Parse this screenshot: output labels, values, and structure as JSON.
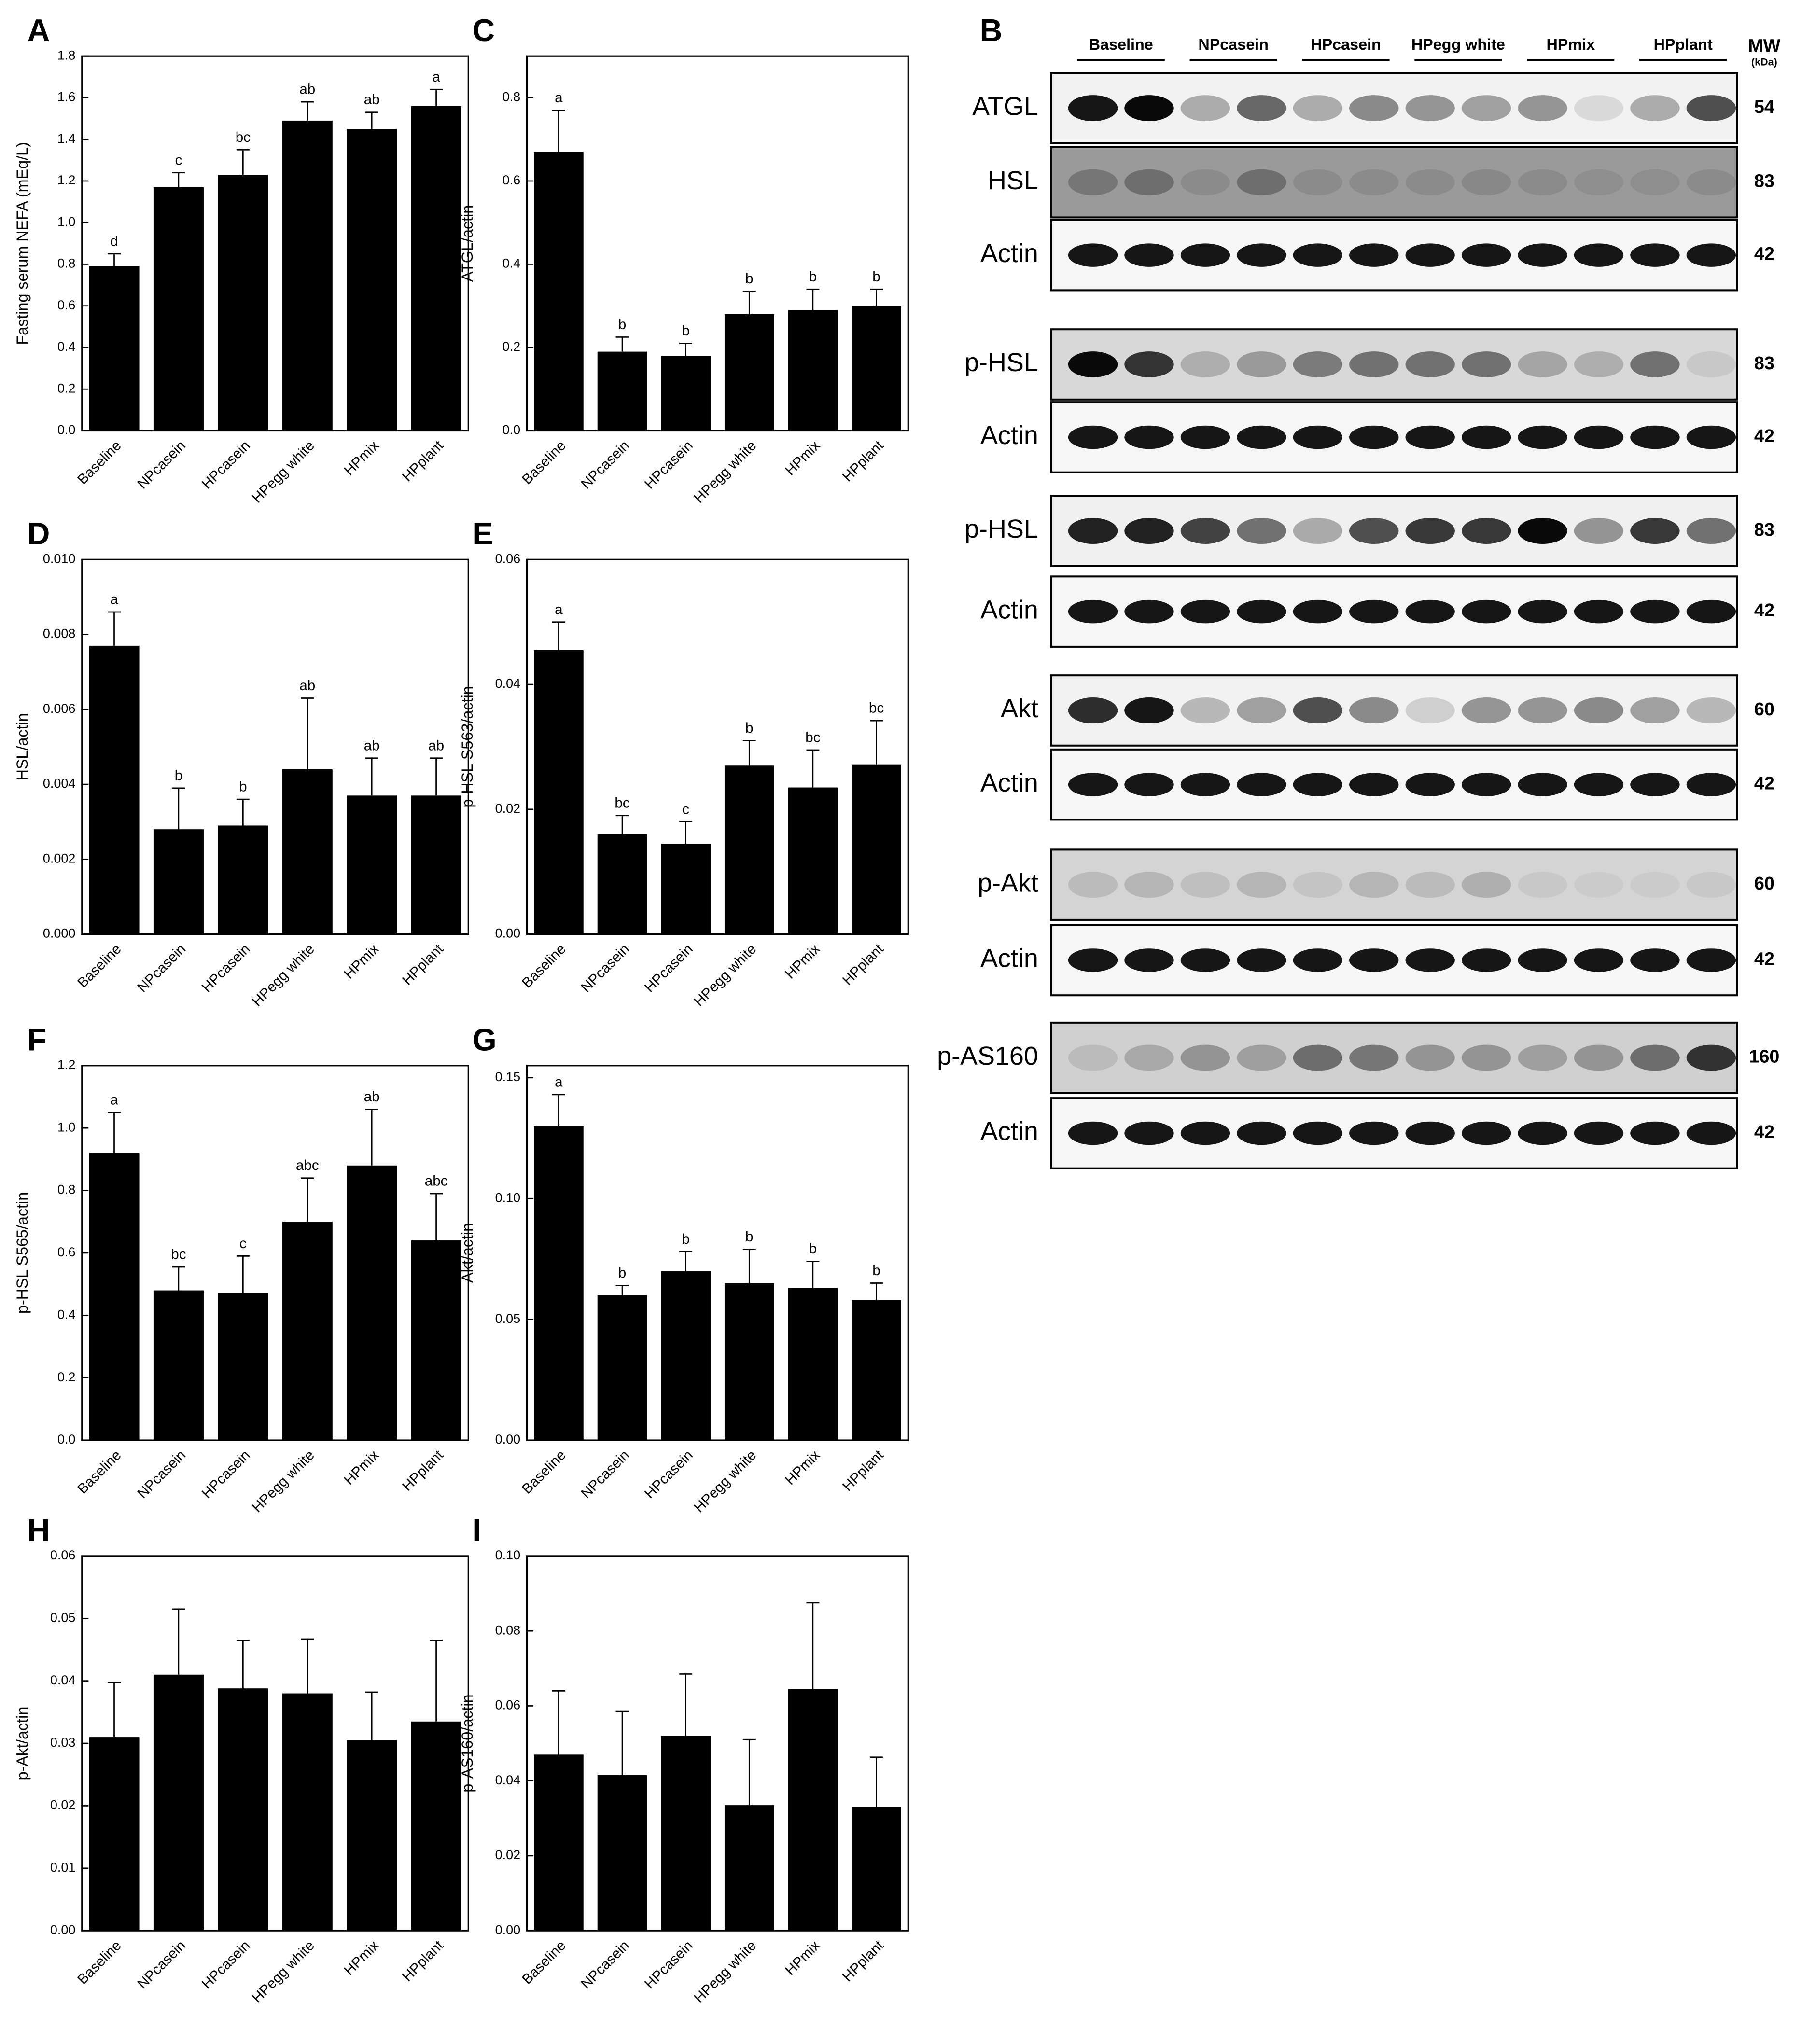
{
  "chart_data": [
    {
      "type": "bar",
      "panel": "A",
      "ylabel": "Fasting serum NEFA (mEq/L)",
      "categories": [
        "Baseline",
        "NPcasein",
        "HPcasein",
        "HPegg white",
        "HPmix",
        "HPplant"
      ],
      "values": [
        0.79,
        1.17,
        1.23,
        1.49,
        1.45,
        1.56
      ],
      "errors": [
        0.06,
        0.07,
        0.12,
        0.09,
        0.08,
        0.08
      ],
      "annotations": [
        "d",
        "c",
        "bc",
        "ab",
        "ab",
        "a"
      ],
      "color": "#000000",
      "ylim": [
        0,
        1.8
      ],
      "yticks": [
        {
          "value": 0,
          "label": "0.0"
        },
        0.2,
        0.4,
        0.6,
        0.8,
        {
          "value": 1,
          "label": "1.0"
        },
        1.2,
        1.4,
        1.6,
        1.8
      ]
    },
    {
      "type": "bar",
      "panel": "C",
      "ylabel": "ATGL/actin",
      "categories": [
        "Baseline",
        "NPcasein",
        "HPcasein",
        "HPegg white",
        "HPmix",
        "HPplant"
      ],
      "values": [
        0.67,
        0.19,
        0.18,
        0.28,
        0.29,
        0.3
      ],
      "errors": [
        0.1,
        0.035,
        0.03,
        0.055,
        0.05,
        0.04
      ],
      "annotations": [
        "a",
        "b",
        "b",
        "b",
        "b",
        "b"
      ],
      "color": "#000000",
      "ylim": [
        0,
        0.9
      ],
      "yticks": [
        {
          "value": 0,
          "label": "0.0"
        },
        0.2,
        0.4,
        0.6,
        0.8
      ]
    },
    {
      "type": "bar",
      "panel": "D",
      "ylabel": "HSL/actin",
      "categories": [
        "Baseline",
        "NPcasein",
        "HPcasein",
        "HPegg white",
        "HPmix",
        "HPplant"
      ],
      "values": [
        0.0077,
        0.0028,
        0.0029,
        0.0044,
        0.0037,
        0.0037
      ],
      "errors": [
        0.0009,
        0.0011,
        0.0007,
        0.0019,
        0.001,
        0.001
      ],
      "annotations": [
        "a",
        "b",
        "b",
        "ab",
        "ab",
        "ab"
      ],
      "color": "#000000",
      "ylim": [
        0,
        0.01
      ],
      "yticks": [
        {
          "value": 0,
          "label": "0.000"
        },
        0.002,
        0.004,
        0.006,
        0.008,
        {
          "value": 0.01,
          "label": "0.010"
        }
      ]
    },
    {
      "type": "bar",
      "panel": "E",
      "ylabel": "p-HSL S563/actin",
      "categories": [
        "Baseline",
        "NPcasein",
        "HPcasein",
        "HPegg white",
        "HPmix",
        "HPplant"
      ],
      "values": [
        0.0455,
        0.016,
        0.0145,
        0.027,
        0.0235,
        0.0272
      ],
      "errors": [
        0.0045,
        0.003,
        0.0035,
        0.004,
        0.006,
        0.007
      ],
      "annotations": [
        "a",
        "bc",
        "c",
        "b",
        "bc",
        "bc"
      ],
      "color": "#000000",
      "ylim": [
        0,
        0.06
      ],
      "yticks": [
        {
          "value": 0,
          "label": "0.00"
        },
        0.02,
        0.04,
        0.06
      ]
    },
    {
      "type": "bar",
      "panel": "F",
      "ylabel": "p-HSL S565/actin",
      "categories": [
        "Baseline",
        "NPcasein",
        "HPcasein",
        "HPegg white",
        "HPmix",
        "HPplant"
      ],
      "values": [
        0.92,
        0.48,
        0.47,
        0.7,
        0.88,
        0.64
      ],
      "errors": [
        0.13,
        0.075,
        0.12,
        0.14,
        0.18,
        0.15
      ],
      "annotations": [
        "a",
        "bc",
        "c",
        "abc",
        "ab",
        "abc"
      ],
      "color": "#000000",
      "ylim": [
        0,
        1.2
      ],
      "yticks": [
        {
          "value": 0,
          "label": "0.0"
        },
        0.2,
        0.4,
        0.6,
        0.8,
        {
          "value": 1,
          "label": "1.0"
        },
        1.2
      ]
    },
    {
      "type": "bar",
      "panel": "G",
      "ylabel": "Akt/actin",
      "categories": [
        "Baseline",
        "NPcasein",
        "HPcasein",
        "HPegg white",
        "HPmix",
        "HPplant"
      ],
      "values": [
        0.13,
        0.06,
        0.07,
        0.065,
        0.063,
        0.058
      ],
      "errors": [
        0.013,
        0.004,
        0.008,
        0.014,
        0.011,
        0.007
      ],
      "annotations": [
        "a",
        "b",
        "b",
        "b",
        "b",
        "b"
      ],
      "color": "#000000",
      "ylim": [
        0,
        0.155
      ],
      "yticks": [
        {
          "value": 0,
          "label": "0.00"
        },
        0.05,
        {
          "value": 0.1,
          "label": "0.10"
        },
        0.15
      ]
    },
    {
      "type": "bar",
      "panel": "H",
      "ylabel": "p-Akt/actin",
      "categories": [
        "Baseline",
        "NPcasein",
        "HPcasein",
        "HPegg white",
        "HPmix",
        "HPplant"
      ],
      "values": [
        0.031,
        0.041,
        0.0388,
        0.038,
        0.0305,
        0.0335
      ],
      "errors": [
        0.0087,
        0.0105,
        0.0077,
        0.0087,
        0.0077,
        0.013
      ],
      "color": "#000000",
      "ylim": [
        0,
        0.06
      ],
      "yticks": [
        {
          "value": 0,
          "label": "0.00"
        },
        0.01,
        0.02,
        0.03,
        0.04,
        0.05,
        0.06
      ]
    },
    {
      "type": "bar",
      "panel": "I",
      "ylabel": "p-AS160/actin",
      "categories": [
        "Baseline",
        "NPcasein",
        "HPcasein",
        "HPegg white",
        "HPmix",
        "HPplant"
      ],
      "values": [
        0.047,
        0.0415,
        0.052,
        0.0335,
        0.0645,
        0.033
      ],
      "errors": [
        0.017,
        0.017,
        0.0165,
        0.0175,
        0.023,
        0.0133
      ],
      "color": "#000000",
      "ylim": [
        0,
        0.1
      ],
      "yticks": [
        {
          "value": 0,
          "label": "0.00"
        },
        0.02,
        0.04,
        0.06,
        0.08,
        {
          "value": 0.1,
          "label": "0.10"
        }
      ]
    }
  ],
  "blot": {
    "panel": "B",
    "groups": [
      "Baseline",
      "NPcasein",
      "HPcasein",
      "HPegg white",
      "HPmix",
      "HPplant"
    ],
    "mw_header": "MW",
    "mw_unit": "(kDa)",
    "rows": [
      {
        "label": "ATGL",
        "mw": 54
      },
      {
        "label": "HSL",
        "mw": 83
      },
      {
        "label": "Actin",
        "mw": 42
      },
      {
        "label": "p-HSL",
        "mw": 83
      },
      {
        "label": "Actin",
        "mw": 42
      },
      {
        "label": "p-HSL",
        "mw": 83
      },
      {
        "label": "Actin",
        "mw": 42
      },
      {
        "label": "Akt",
        "mw": 60
      },
      {
        "label": "Actin",
        "mw": 42
      },
      {
        "label": "p-Akt",
        "mw": 60
      },
      {
        "label": "Actin",
        "mw": 42
      },
      {
        "label": "p-AS160",
        "mw": 160
      },
      {
        "label": "Actin",
        "mw": 42
      }
    ]
  }
}
